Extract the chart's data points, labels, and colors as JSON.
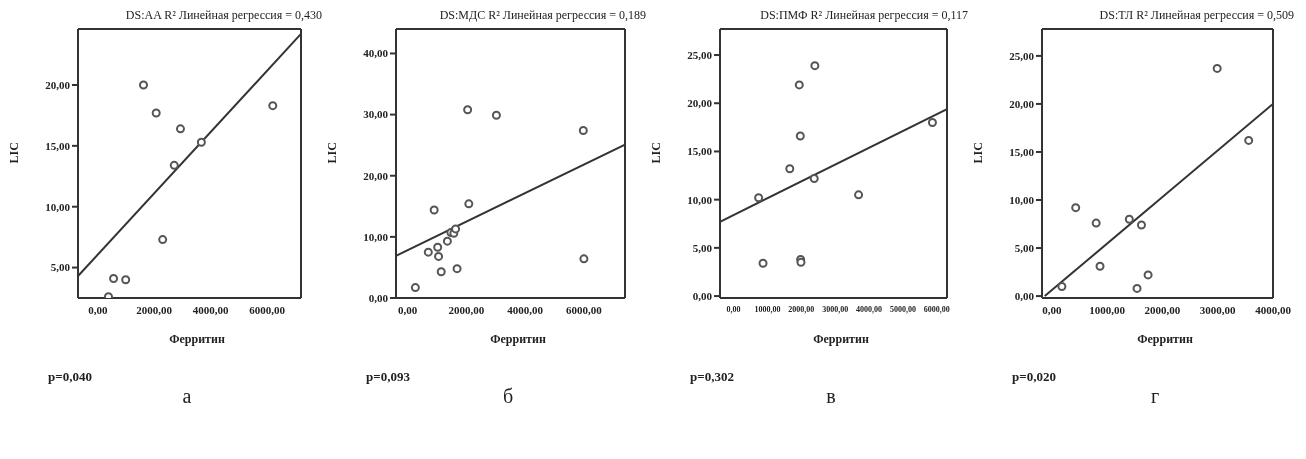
{
  "chart_data": [
    {
      "type": "scatter",
      "title": "DS:AA R² Линейная регрессия = 0,430",
      "xlabel": "Ферритин",
      "ylabel": "LIC",
      "xlim": [
        -700,
        7200
      ],
      "ylim": [
        2.5,
        24.6
      ],
      "xticks": [
        {
          "value": 0,
          "label": "0,00"
        },
        {
          "value": 2000,
          "label": "2000,00"
        },
        {
          "value": 4000,
          "label": "4000,00"
        },
        {
          "value": 6000,
          "label": "6000,00"
        }
      ],
      "yticks": [
        {
          "value": 5,
          "label": "5,00"
        },
        {
          "value": 10,
          "label": "10,00"
        },
        {
          "value": 15,
          "label": "15,00"
        },
        {
          "value": 20,
          "label": "20,00"
        }
      ],
      "series": [
        {
          "type": "scatter",
          "marker": "circle",
          "color": "#555555",
          "x": [
            1620,
            2070,
            2930,
            3670,
            2710,
            2300,
            560,
            990,
            380,
            6200
          ],
          "values": [
            20.0,
            17.7,
            16.4,
            15.3,
            13.4,
            7.3,
            4.1,
            4.0,
            2.6,
            18.3
          ]
        },
        {
          "type": "line",
          "marker": "none",
          "color": "#333333",
          "x": [
            -700,
            7200
          ],
          "values": [
            4.3,
            24.2
          ]
        }
      ],
      "annotations": [
        "p=0,040",
        "а"
      ]
    },
    {
      "type": "scatter",
      "title": "DS:МДС R² Линейная регрессия = 0,189",
      "xlabel": "Ферритин",
      "ylabel": "LIC",
      "xlim": [
        -400,
        7400
      ],
      "ylim": [
        0,
        44
      ],
      "xticks": [
        {
          "value": 0,
          "label": "0,00"
        },
        {
          "value": 2000,
          "label": "2000,00"
        },
        {
          "value": 4000,
          "label": "4000,00"
        },
        {
          "value": 6000,
          "label": "6000,00"
        }
      ],
      "yticks": [
        {
          "value": 0,
          "label": "0,00"
        },
        {
          "value": 10,
          "label": "10,00"
        },
        {
          "value": 20,
          "label": "20,00"
        },
        {
          "value": 30,
          "label": "30,00"
        },
        {
          "value": 40,
          "label": "40,00"
        }
      ],
      "series": [
        {
          "type": "scatter",
          "marker": "circle",
          "color": "#555555",
          "x": [
            2040,
            3020,
            5980,
            2080,
            900,
            1470,
            1570,
            1630,
            1350,
            1020,
            700,
            1050,
            1140,
            1680,
            260,
            6000
          ],
          "values": [
            30.8,
            29.9,
            27.4,
            15.4,
            14.4,
            10.7,
            10.6,
            11.3,
            9.3,
            8.3,
            7.5,
            6.8,
            4.3,
            4.8,
            1.7,
            6.4
          ]
        },
        {
          "type": "line",
          "marker": "none",
          "color": "#333333",
          "x": [
            -400,
            7400
          ],
          "values": [
            6.9,
            25.1
          ]
        }
      ],
      "annotations": [
        "p=0,093",
        "б"
      ]
    },
    {
      "type": "scatter",
      "title": "DS:ПМФ R² Линейная регрессия = 0,117",
      "xlabel": "Ферритин",
      "ylabel": "LIC",
      "xlim": [
        -400,
        6300
      ],
      "ylim": [
        -0.2,
        27.7
      ],
      "xticks": [
        {
          "value": 0,
          "label": "0,00"
        },
        {
          "value": 1000,
          "label": "1000,00"
        },
        {
          "value": 2000,
          "label": "2000,00"
        },
        {
          "value": 3000,
          "label": "3000,00"
        },
        {
          "value": 4000,
          "label": "4000,00"
        },
        {
          "value": 5000,
          "label": "5000,00"
        },
        {
          "value": 6000,
          "label": "6000,00"
        }
      ],
      "yticks": [
        {
          "value": 0,
          "label": "0,00"
        },
        {
          "value": 5,
          "label": "5,00"
        },
        {
          "value": 10,
          "label": "10,00"
        },
        {
          "value": 15,
          "label": "15,00"
        },
        {
          "value": 20,
          "label": "20,00"
        },
        {
          "value": 25,
          "label": "25,00"
        }
      ],
      "series": [
        {
          "type": "scatter",
          "marker": "circle",
          "color": "#555555",
          "x": [
            2400,
            1940,
            1970,
            1660,
            2380,
            740,
            3690,
            5870,
            870,
            1980,
            1990
          ],
          "values": [
            23.9,
            21.9,
            16.6,
            13.2,
            12.2,
            10.2,
            10.5,
            18.0,
            3.4,
            3.8,
            3.5
          ]
        },
        {
          "type": "line",
          "marker": "none",
          "color": "#333333",
          "x": [
            -400,
            6300
          ],
          "values": [
            7.7,
            19.4
          ]
        }
      ],
      "annotations": [
        "p=0,302",
        "в"
      ]
    },
    {
      "type": "scatter",
      "title": "DS:ТЛ R² Линейная регрессия = 0,509",
      "xlabel": "Ферритин",
      "ylabel": "LIC",
      "xlim": [
        -180,
        4000
      ],
      "ylim": [
        -0.2,
        27.8
      ],
      "xticks": [
        {
          "value": 0,
          "label": "0,00"
        },
        {
          "value": 1000,
          "label": "1000,00"
        },
        {
          "value": 2000,
          "label": "2000,00"
        },
        {
          "value": 3000,
          "label": "3000,00"
        },
        {
          "value": 4000,
          "label": "4000,00"
        }
      ],
      "yticks": [
        {
          "value": 0,
          "label": "0,00"
        },
        {
          "value": 5,
          "label": "5,00"
        },
        {
          "value": 10,
          "label": "10,00"
        },
        {
          "value": 15,
          "label": "15,00"
        },
        {
          "value": 20,
          "label": "20,00"
        },
        {
          "value": 25,
          "label": "25,00"
        }
      ],
      "series": [
        {
          "type": "scatter",
          "marker": "circle",
          "color": "#555555",
          "x": [
            2990,
            3560,
            430,
            800,
            1400,
            1620,
            870,
            1740,
            1540,
            180
          ],
          "values": [
            23.7,
            16.2,
            9.2,
            7.6,
            8.0,
            7.4,
            3.1,
            2.2,
            0.8,
            1.0
          ]
        },
        {
          "type": "line",
          "marker": "none",
          "color": "#333333",
          "x": [
            -130,
            4000
          ],
          "values": [
            0,
            20.0
          ]
        }
      ],
      "annotations": [
        "p=0,020",
        "г"
      ]
    }
  ]
}
